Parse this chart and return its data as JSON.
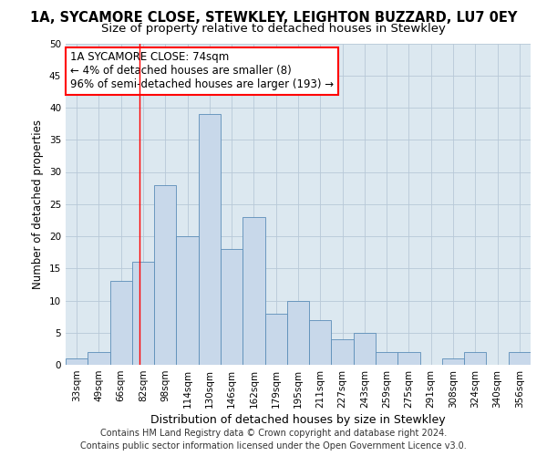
{
  "title": "1A, SYCAMORE CLOSE, STEWKLEY, LEIGHTON BUZZARD, LU7 0EY",
  "subtitle": "Size of property relative to detached houses in Stewkley",
  "xlabel": "Distribution of detached houses by size in Stewkley",
  "ylabel": "Number of detached properties",
  "footer_line1": "Contains HM Land Registry data © Crown copyright and database right 2024.",
  "footer_line2": "Contains public sector information licensed under the Open Government Licence v3.0.",
  "categories": [
    "33sqm",
    "49sqm",
    "66sqm",
    "82sqm",
    "98sqm",
    "114sqm",
    "130sqm",
    "146sqm",
    "162sqm",
    "179sqm",
    "195sqm",
    "211sqm",
    "227sqm",
    "243sqm",
    "259sqm",
    "275sqm",
    "291sqm",
    "308sqm",
    "324sqm",
    "340sqm",
    "356sqm"
  ],
  "values": [
    1,
    2,
    13,
    16,
    28,
    20,
    39,
    18,
    23,
    8,
    10,
    7,
    4,
    5,
    2,
    2,
    0,
    1,
    2,
    0,
    2
  ],
  "bar_color": "#c8d8ea",
  "bar_edge_color": "#5b8db8",
  "annotation_line1": "1A SYCAMORE CLOSE: 74sqm",
  "annotation_line2": "← 4% of detached houses are smaller (8)",
  "annotation_line3": "96% of semi-detached houses are larger (193) →",
  "annotation_box_color": "white",
  "annotation_box_edge_color": "red",
  "vline_x": 2.82,
  "vline_color": "red",
  "ylim": [
    0,
    50
  ],
  "yticks": [
    0,
    5,
    10,
    15,
    20,
    25,
    30,
    35,
    40,
    45,
    50
  ],
  "grid_color": "#b8c8d8",
  "bg_color": "#dce8f0",
  "title_fontsize": 10.5,
  "subtitle_fontsize": 9.5,
  "xlabel_fontsize": 9,
  "ylabel_fontsize": 8.5,
  "tick_fontsize": 7.5,
  "footer_fontsize": 7,
  "annotation_fontsize": 8.5
}
